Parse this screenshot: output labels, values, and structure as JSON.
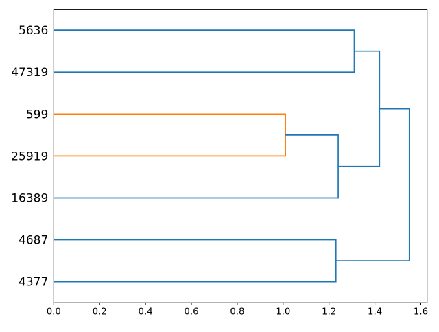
{
  "chart_data": {
    "type": "dendrogram",
    "orientation": "leaves-left-root-right",
    "title": "",
    "leaves": [
      {
        "label": "5636",
        "y": 65
      },
      {
        "label": "47319",
        "y": 55
      },
      {
        "label": "599",
        "y": 45
      },
      {
        "label": "25919",
        "y": 35
      },
      {
        "label": "16389",
        "y": 25
      },
      {
        "label": "4687",
        "y": 15
      },
      {
        "label": "4377",
        "y": 5
      }
    ],
    "merges": [
      {
        "id": "m0",
        "children": [
          "5636",
          "47319"
        ],
        "distance": 1.31,
        "color": "#1f77b4"
      },
      {
        "id": "m1",
        "children": [
          "599",
          "25919"
        ],
        "distance": 1.01,
        "color": "#ff7f0e"
      },
      {
        "id": "m2",
        "children": [
          "m1",
          "16389"
        ],
        "distance": 1.24,
        "color": "#1f77b4"
      },
      {
        "id": "m3",
        "children": [
          "4687",
          "4377"
        ],
        "distance": 1.23,
        "color": "#1f77b4"
      },
      {
        "id": "m4",
        "children": [
          "m0",
          "m2"
        ],
        "distance": 1.42,
        "color": "#1f77b4"
      },
      {
        "id": "m5",
        "children": [
          "m4",
          "m3"
        ],
        "distance": 1.55,
        "color": "#1f77b4"
      }
    ],
    "x_axis": {
      "tick_labels": [
        "0.0",
        "0.2",
        "0.4",
        "0.6",
        "0.8",
        "1.0",
        "1.2",
        "1.4",
        "1.6"
      ],
      "tick_values": [
        0,
        0.2,
        0.4,
        0.6,
        0.8,
        1.0,
        1.2,
        1.4,
        1.6
      ],
      "min": 0,
      "max": 1.6275
    },
    "y_axis": {
      "min": 0,
      "max": 70,
      "tick_labels": []
    },
    "legend": null,
    "grid": false,
    "colors": {
      "link_above_threshold": "#1f77b4",
      "cluster_1": "#ff7f0e",
      "axis": "#000000",
      "background": "#ffffff"
    }
  }
}
